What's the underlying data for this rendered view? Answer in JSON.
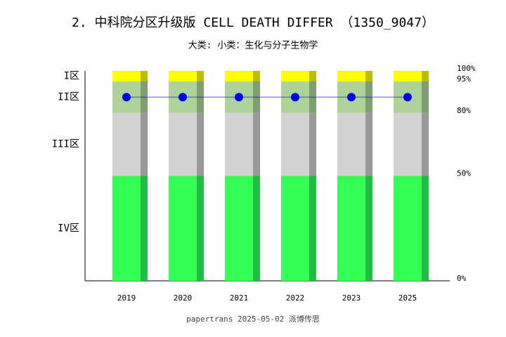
{
  "chart_data": {
    "type": "bar",
    "stacked": true,
    "title": "2. 中科院分区升级版 CELL DEATH DIFFER （1350_9047）",
    "subtitle": "大类:  小类：生化与分子生物学",
    "source": "papertrans 2025-05-02 派博传思",
    "categories": [
      "2019",
      "2020",
      "2021",
      "2022",
      "2023",
      "2025"
    ],
    "series": [
      {
        "name": "IV区",
        "type": "bar",
        "color": "#33ff55",
        "shade": "#22bb44",
        "values": [
          50,
          50,
          50,
          50,
          50,
          50
        ]
      },
      {
        "name": "III区",
        "type": "bar",
        "color": "#d3d3d3",
        "shade": "#999999",
        "values": [
          30,
          30,
          30,
          30,
          30,
          30
        ]
      },
      {
        "name": "II区",
        "type": "bar",
        "color": "#aed39a",
        "shade": "#7f9c72",
        "values": [
          15,
          15,
          15,
          15,
          15,
          15
        ]
      },
      {
        "name": "I区",
        "type": "bar",
        "color": "#ffff00",
        "shade": "#bbbb00",
        "values": [
          5,
          5,
          5,
          5,
          5,
          5
        ]
      },
      {
        "type": "line",
        "color": "#0000ee",
        "values": [
          87.5,
          87.5,
          87.5,
          87.5,
          87.5,
          87.5
        ]
      }
    ],
    "ylim": [
      0,
      100
    ],
    "yticks": [
      {
        "value": 0,
        "label": "0%"
      },
      {
        "value": 50,
        "label": "50%"
      },
      {
        "value": 80,
        "label": "80%"
      },
      {
        "value": 95,
        "label": "95%"
      },
      {
        "value": 100,
        "label": "100%"
      }
    ],
    "grid": false
  }
}
